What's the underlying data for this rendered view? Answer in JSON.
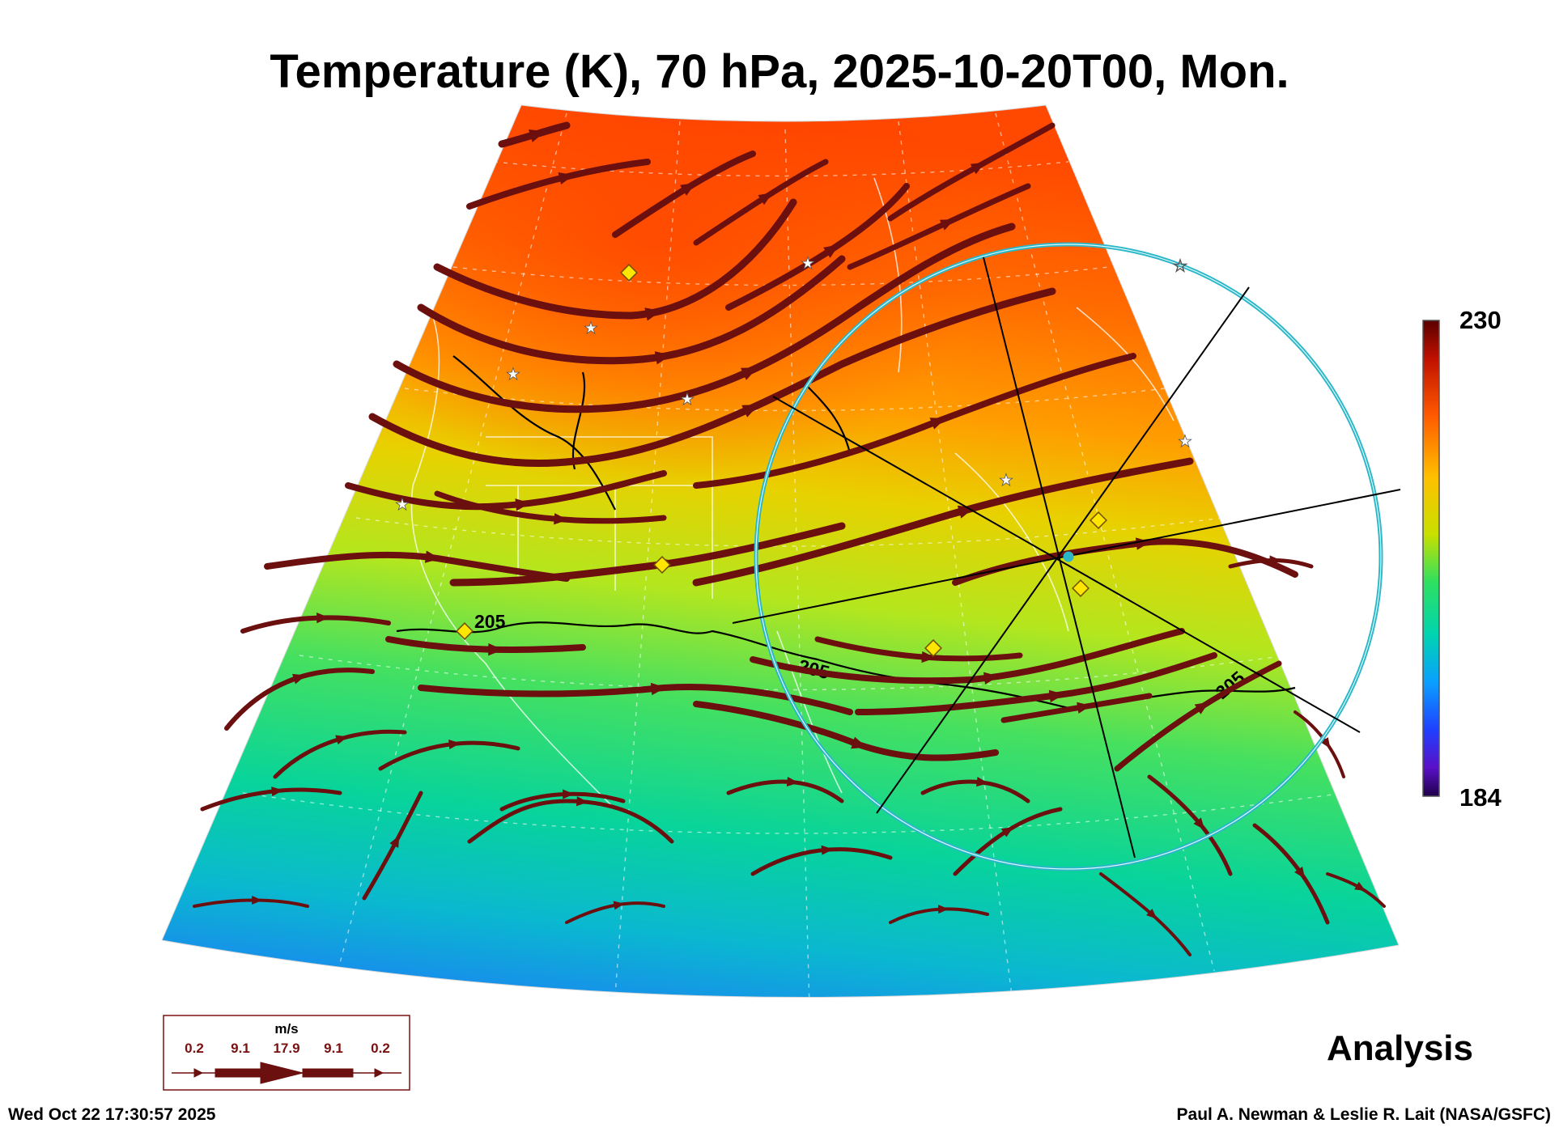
{
  "title": "Temperature (K), 70 hPa, 2025-10-20T00, Mon.",
  "colorbar": {
    "max": "230",
    "min": "184"
  },
  "contour_label": "205",
  "legend": {
    "unit": "m/s",
    "speeds": [
      "0.2",
      "9.1",
      "17.9",
      "9.1",
      "0.2"
    ]
  },
  "analysis_label": "Analysis",
  "footer": {
    "timestamp": "Wed Oct 22 17:30:57 2025",
    "credit": "Paul A. Newman & Leslie R. Lait (NASA/GSFC)"
  },
  "colors": {
    "streamline": "#6b0f0f",
    "ring": "#2bb7c8",
    "marker_diamond": "#ffe600",
    "warm": "#ff4a00",
    "cold": "#1e78ff"
  }
}
